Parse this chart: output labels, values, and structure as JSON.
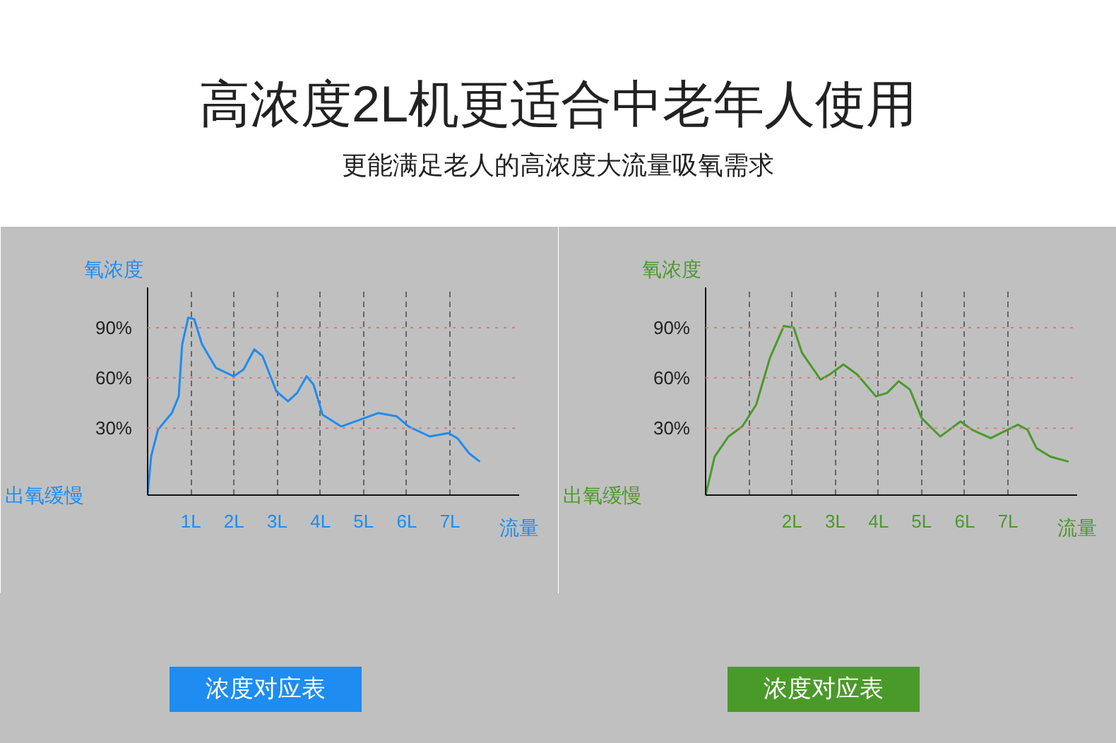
{
  "chart_data": [
    {
      "type": "line",
      "title": "高浓度2L机更适合中老年人使用",
      "subtitle": "更能满足老人的高浓度大流量吸氧需求",
      "ylabel": "氧浓度",
      "xlabel": "流量",
      "annotations": [
        "出氧缓慢",
        "浓度对应表"
      ],
      "x": [
        0,
        0.08,
        0.24,
        0.56,
        0.72,
        0.8,
        0.94,
        1.08,
        1.26,
        1.58,
        1.99,
        2.22,
        2.47,
        2.66,
        2.98,
        3.25,
        3.46,
        3.68,
        3.84,
        4.05,
        4.48,
        4.91,
        5.34,
        5.77,
        6.04,
        6.53,
        6.96,
        7.17,
        7.44,
        7.69
      ],
      "series": [
        {
          "color": "#1e8cf0",
          "values": [
            -10,
            13,
            29,
            39,
            49,
            80,
            96,
            95,
            80,
            66,
            61,
            65,
            77,
            73,
            52,
            46,
            51,
            61,
            56,
            38,
            31,
            35,
            39,
            37,
            31,
            25,
            27,
            24,
            15,
            10
          ]
        }
      ],
      "xlim": [
        0,
        8.6
      ],
      "ylim": [
        -10,
        114
      ],
      "xticks": [
        {
          "value": 1,
          "label": "1L"
        },
        {
          "value": 2,
          "label": "2L"
        },
        {
          "value": 3,
          "label": "3L"
        },
        {
          "value": 4,
          "label": "4L"
        },
        {
          "value": 5,
          "label": "5L"
        },
        {
          "value": 6,
          "label": "6L"
        },
        {
          "value": 7,
          "label": "7L"
        }
      ],
      "yticks": [
        {
          "value": 30,
          "label": "30%"
        },
        {
          "value": 60,
          "label": "60%"
        },
        {
          "value": 90,
          "label": "90%"
        }
      ],
      "ref_lines": [
        {
          "axis": "y",
          "value": 30,
          "color": "#e07a7a",
          "line_style": "dotted"
        },
        {
          "axis": "y",
          "value": 60,
          "color": "#e07a7a",
          "line_style": "dotted"
        },
        {
          "axis": "y",
          "value": 90,
          "color": "#e07a7a",
          "line_style": "dotted"
        }
      ],
      "grid": "x",
      "marker": "none",
      "line_style": "solid"
    },
    {
      "type": "line",
      "ylabel": "氧浓度",
      "xlabel": "流量",
      "annotations": [
        "出氧缓慢",
        "浓度对应表"
      ],
      "x": [
        0,
        0.21,
        0.53,
        0.85,
        1.17,
        1.49,
        1.81,
        2.04,
        2.23,
        2.66,
        2.87,
        3.19,
        3.51,
        3.94,
        4.2,
        4.47,
        4.73,
        5,
        5.43,
        5.59,
        5.9,
        6.17,
        6.6,
        6.91,
        7.23,
        7.45,
        7.66,
        7.98,
        8.4
      ],
      "series": [
        {
          "color": "#4a9a2a",
          "values": [
            -10,
            13,
            25,
            31,
            44,
            72,
            91,
            90,
            75,
            59,
            62,
            68,
            62,
            49,
            51,
            58,
            53,
            36,
            25,
            28,
            34,
            29,
            24,
            28,
            32,
            29,
            18,
            13,
            10
          ]
        }
      ],
      "xlim": [
        0,
        8.6
      ],
      "ylim": [
        -10,
        114
      ],
      "xticks": [
        {
          "value": 1,
          "label": null
        },
        {
          "value": 2,
          "label": "2L"
        },
        {
          "value": 3,
          "label": "3L"
        },
        {
          "value": 4,
          "label": "4L"
        },
        {
          "value": 5,
          "label": "5L"
        },
        {
          "value": 6,
          "label": "6L"
        },
        {
          "value": 7,
          "label": "7L"
        }
      ],
      "yticks": [
        {
          "value": 30,
          "label": "30%"
        },
        {
          "value": 60,
          "label": "60%"
        },
        {
          "value": 90,
          "label": "90%"
        }
      ],
      "ref_lines": [
        {
          "axis": "y",
          "value": 30,
          "color": "#e07a7a",
          "line_style": "dotted"
        },
        {
          "axis": "y",
          "value": 60,
          "color": "#e07a7a",
          "line_style": "dotted"
        },
        {
          "axis": "y",
          "value": 90,
          "color": "#e07a7a",
          "line_style": "dotted"
        }
      ],
      "grid": "x",
      "marker": "none",
      "line_style": "solid"
    }
  ]
}
